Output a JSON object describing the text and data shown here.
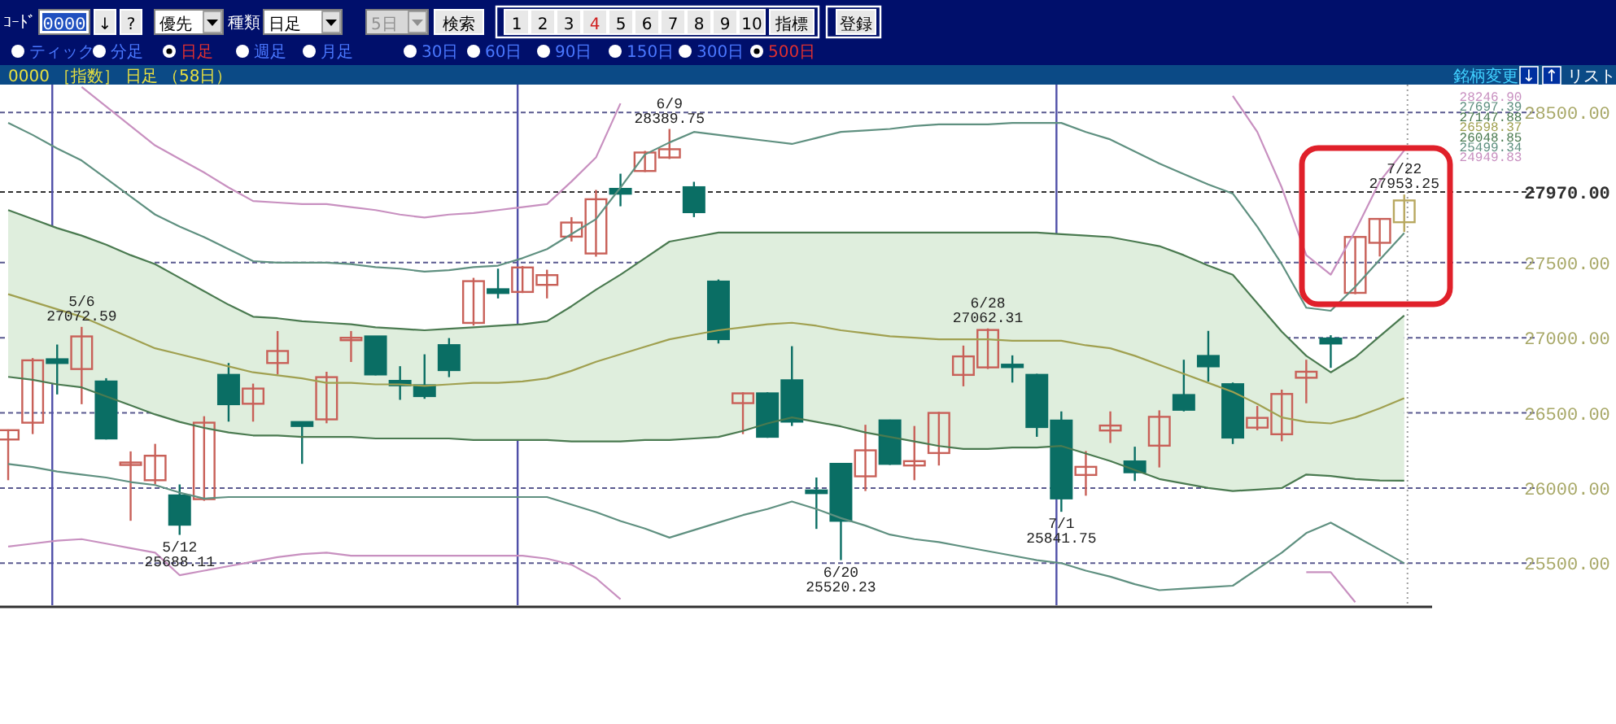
{
  "chart_data": {
    "type": "candlestick",
    "title": "0000 ［指数］ 日足 （58日）",
    "categories": [
      null,
      null,
      null,
      null,
      null,
      null,
      null,
      null,
      null,
      null,
      null,
      null,
      null,
      null,
      null,
      null,
      null,
      null,
      null,
      null,
      null,
      null,
      null,
      null,
      null,
      null,
      null,
      null,
      null,
      null,
      null,
      null,
      null,
      null,
      null,
      null,
      null,
      null,
      null,
      null,
      null,
      null,
      null,
      null,
      null,
      null,
      null,
      null,
      null,
      null,
      null,
      null,
      null,
      null,
      null,
      null,
      null,
      null
    ],
    "ohlc": [
      [
        26323,
        26390,
        26052,
        26385
      ],
      [
        26435,
        26865,
        26359,
        26850
      ],
      [
        26857,
        26955,
        26623,
        26832
      ],
      [
        26792,
        27072.59,
        26558,
        27009
      ],
      [
        26709,
        26731,
        26323,
        26330
      ],
      [
        26160,
        26244,
        25782,
        26170
      ],
      [
        26052,
        26294,
        26024,
        26215
      ],
      [
        25951,
        26024,
        25688.11,
        25756
      ],
      [
        25926,
        26478,
        25915,
        26435
      ],
      [
        26753,
        26832,
        26442,
        26558
      ],
      [
        26561,
        26695,
        26442,
        26662
      ],
      [
        26832,
        27045,
        26756,
        26912
      ],
      [
        26439,
        26442,
        26161,
        26413
      ],
      [
        26457,
        26774,
        26431,
        26738
      ],
      [
        26990,
        27045,
        26839,
        27000
      ],
      [
        27009,
        27012,
        26750,
        26756
      ],
      [
        26713,
        26811,
        26587,
        26684
      ],
      [
        26684,
        26890,
        26594,
        26612
      ],
      [
        26951,
        26998,
        26738,
        26785
      ],
      [
        27099,
        27399,
        27081,
        27377
      ],
      [
        27323,
        27460,
        27262,
        27298
      ],
      [
        27305,
        27478,
        27298,
        27468
      ],
      [
        27352,
        27453,
        27262,
        27417
      ],
      [
        27673,
        27803,
        27641,
        27767
      ],
      [
        27561,
        27984,
        27540,
        27922
      ],
      [
        27991,
        28092,
        27875,
        27959
      ],
      [
        28110,
        28244,
        28103,
        28233
      ],
      [
        28200,
        28389.75,
        28190,
        28255
      ],
      [
        28002,
        28038,
        27803,
        27836
      ],
      [
        27374,
        27388,
        26962,
        26991
      ],
      [
        26565,
        26637,
        26359,
        26630
      ],
      [
        26630,
        26637,
        26334,
        26341
      ],
      [
        26717,
        26944,
        26413,
        26442
      ],
      [
        25984,
        26070,
        25728,
        25966
      ],
      [
        26161,
        26164,
        25520.23,
        25782
      ],
      [
        26078,
        26421,
        25980,
        26251
      ],
      [
        26450,
        26455,
        26154,
        26161
      ],
      [
        26150,
        26413,
        26052,
        26179
      ],
      [
        26233,
        26507,
        26150,
        26500
      ],
      [
        26753,
        26948,
        26677,
        26876
      ],
      [
        26803,
        27062.31,
        26792,
        27052
      ],
      [
        26821,
        26883,
        26702,
        26810
      ],
      [
        26753,
        26760,
        26341,
        26406
      ],
      [
        26449,
        26510,
        25841.75,
        25931
      ],
      [
        26087,
        26246,
        25949,
        26141
      ],
      [
        26383,
        26510,
        26300,
        26416
      ],
      [
        26177,
        26275,
        26047,
        26105
      ],
      [
        26282,
        26517,
        26137,
        26474
      ],
      [
        26619,
        26854,
        26510,
        26521
      ],
      [
        26879,
        27046,
        26709,
        26810
      ],
      [
        26691,
        26702,
        26293,
        26336
      ],
      [
        26402,
        26546,
        26384,
        26467
      ],
      [
        26358,
        26655,
        26311,
        26626
      ],
      [
        26734,
        26854,
        26564,
        26774
      ],
      [
        26995,
        27017,
        26800,
        26962
      ],
      [
        27299,
        27675,
        27290,
        27671
      ],
      [
        27632,
        27795,
        27541,
        27791
      ],
      [
        27769,
        27953.25,
        27704,
        27914
      ]
    ],
    "colors": [
      "#c86058",
      "#c86058",
      "#0a6e64",
      "#c86058",
      "#0a6e64",
      "#c86058",
      "#c86058",
      "#0a6e64",
      "#c86058",
      "#0a6e64",
      "#c86058",
      "#c86058",
      "#0a6e64",
      "#c86058",
      "#c86058",
      "#0a6e64",
      "#0a6e64",
      "#0a6e64",
      "#0a6e64",
      "#c86058",
      "#0a6e64",
      "#c86058",
      "#c86058",
      "#c86058",
      "#c86058",
      "#0a6e64",
      "#c86058",
      "#c86058",
      "#0a6e64",
      "#0a6e64",
      "#c86058",
      "#0a6e64",
      "#0a6e64",
      "#0a6e64",
      "#0a6e64",
      "#c86058",
      "#0a6e64",
      "#c86058",
      "#c86058",
      "#c86058",
      "#c86058",
      "#0a6e64",
      "#0a6e64",
      "#0a6e64",
      "#c86058",
      "#c86058",
      "#0a6e64",
      "#c86058",
      "#0a6e64",
      "#0a6e64",
      "#0a6e64",
      "#c86058",
      "#c86058",
      "#c86058",
      "#0a6e64",
      "#c86058",
      "#c86058",
      "#b8a860"
    ],
    "ylim": [
      25220,
      28685
    ],
    "yticks": [
      {
        "value": 25500,
        "label": "25500.00"
      },
      {
        "value": 26000,
        "label": "26000.00"
      },
      {
        "value": 26500,
        "label": "26500.00"
      },
      {
        "value": 27000,
        "label": "27000.00"
      },
      {
        "value": 27500,
        "label": "27500.00"
      },
      {
        "value": 28500,
        "label": "28500.00"
      }
    ],
    "tick_labels": "y",
    "grid": true,
    "ref_lines": [
      {
        "axis": "y",
        "value": 27970,
        "label": "27970.00",
        "color": "#303030",
        "line_style": "dashed"
      }
    ],
    "series": [
      {
        "type": "line",
        "color": "#c890c0",
        "values": [
          null,
          null,
          null,
          28670,
          28540,
          28410,
          28280,
          28190,
          28100,
          28000,
          27910,
          27900,
          27890,
          27890,
          27870,
          27850,
          27820,
          27800,
          27820,
          27830,
          27850,
          27870,
          27890,
          28040,
          28200,
          28560,
          null,
          null,
          null,
          null,
          null,
          null,
          null,
          null,
          null,
          null,
          null,
          null,
          null,
          null,
          null,
          null,
          null,
          null,
          null,
          null,
          null,
          null,
          null,
          null,
          28610,
          28370,
          28000,
          27550,
          27420,
          27710,
          28040,
          28246.9
        ]
      },
      {
        "type": "line",
        "color": "#5f9080",
        "values": [
          28430,
          28350,
          28260,
          28180,
          28060,
          27940,
          27820,
          27740,
          27670,
          27590,
          27510,
          27500,
          27500,
          27500,
          27490,
          27470,
          27460,
          27440,
          27450,
          27470,
          27480,
          27530,
          27590,
          27690,
          27790,
          28000,
          28220,
          28300,
          28370,
          28350,
          28330,
          28310,
          28290,
          28330,
          28370,
          28380,
          28390,
          28410,
          28420,
          28420,
          28420,
          28430,
          28430,
          28430,
          28370,
          28320,
          28240,
          28160,
          28090,
          28020,
          27960,
          27740,
          27490,
          27200,
          27180,
          27340,
          27520,
          27697.39
        ]
      },
      {
        "type": "line",
        "color": "#4a7a50",
        "values": [
          27850,
          27790,
          27730,
          27680,
          27620,
          27550,
          27490,
          27400,
          27310,
          27220,
          27140,
          27130,
          27110,
          27100,
          27090,
          27070,
          27060,
          27050,
          27060,
          27070,
          27080,
          27090,
          27110,
          27210,
          27320,
          27420,
          27530,
          27640,
          27670,
          27700,
          27700,
          27700,
          27700,
          27700,
          27700,
          27700,
          27700,
          27700,
          27700,
          27700,
          27700,
          27700,
          27700,
          27690,
          27680,
          27670,
          27640,
          27610,
          27550,
          27480,
          27420,
          27230,
          27040,
          26880,
          26770,
          26870,
          27010,
          27147.88
        ]
      },
      {
        "type": "line",
        "color": "#a0a050",
        "values": [
          27290,
          27240,
          27190,
          27140,
          27070,
          27000,
          26930,
          26890,
          26850,
          26810,
          26770,
          26750,
          26730,
          26700,
          26700,
          26690,
          26690,
          26680,
          26690,
          26700,
          26700,
          26710,
          26730,
          26780,
          26840,
          26890,
          26940,
          26990,
          27020,
          27050,
          27070,
          27090,
          27100,
          27080,
          27050,
          27030,
          27010,
          27000,
          26990,
          26990,
          26990,
          26980,
          26980,
          26980,
          26950,
          26930,
          26880,
          26820,
          26760,
          26700,
          26640,
          26560,
          26470,
          26440,
          26430,
          26470,
          26530,
          26598.37
        ],
        "upper": [
          27850,
          27790,
          27730,
          27680,
          27620,
          27550,
          27490,
          27400,
          27310,
          27220,
          27140,
          27130,
          27110,
          27100,
          27090,
          27070,
          27060,
          27050,
          27060,
          27070,
          27080,
          27090,
          27110,
          27210,
          27320,
          27420,
          27530,
          27640,
          27670,
          27700,
          27700,
          27700,
          27700,
          27700,
          27700,
          27700,
          27700,
          27700,
          27700,
          27700,
          27700,
          27700,
          27700,
          27690,
          27680,
          27670,
          27640,
          27610,
          27550,
          27480,
          27420,
          27230,
          27040,
          26880,
          26770,
          26870,
          27010,
          27147.88
        ],
        "lower": [
          26740,
          26720,
          26690,
          26670,
          26610,
          26550,
          26490,
          26440,
          26400,
          26370,
          26350,
          26350,
          26340,
          26340,
          26340,
          26330,
          26330,
          26330,
          26330,
          26320,
          26320,
          26320,
          26320,
          26310,
          26310,
          26310,
          26320,
          26320,
          26330,
          26340,
          26380,
          26430,
          26470,
          26440,
          26410,
          26370,
          26340,
          26310,
          26280,
          26260,
          26260,
          26270,
          26270,
          26280,
          26230,
          26180,
          26120,
          26060,
          26030,
          26000,
          25980,
          25990,
          26000,
          26090,
          26080,
          26060,
          26050,
          26048.85
        ]
      },
      {
        "type": "line",
        "color": "#4a7a50",
        "values": [
          26740,
          26720,
          26690,
          26670,
          26610,
          26550,
          26490,
          26440,
          26400,
          26370,
          26350,
          26350,
          26340,
          26340,
          26340,
          26330,
          26330,
          26330,
          26330,
          26320,
          26320,
          26320,
          26320,
          26310,
          26310,
          26310,
          26320,
          26320,
          26330,
          26340,
          26380,
          26430,
          26470,
          26440,
          26410,
          26370,
          26340,
          26310,
          26280,
          26260,
          26260,
          26270,
          26270,
          26280,
          26230,
          26180,
          26120,
          26060,
          26030,
          26000,
          25980,
          25990,
          26000,
          26090,
          26080,
          26060,
          26050,
          26048.85
        ]
      },
      {
        "type": "line",
        "color": "#5f9080",
        "values": [
          26160,
          26140,
          26110,
          26090,
          26070,
          26040,
          26020,
          25970,
          25930,
          25940,
          25940,
          25940,
          25940,
          25940,
          25940,
          25940,
          25940,
          25940,
          25940,
          25940,
          25940,
          25940,
          25940,
          25890,
          25840,
          25780,
          25730,
          25670,
          25720,
          25770,
          25820,
          25860,
          25910,
          25860,
          25800,
          25750,
          25690,
          25660,
          25640,
          25610,
          25580,
          25550,
          25520,
          25500,
          25450,
          25410,
          25360,
          25320,
          25330,
          25340,
          25350,
          25460,
          25570,
          25700,
          25770,
          25680,
          25590,
          25499.34
        ]
      },
      {
        "type": "line",
        "color": "#c890c0",
        "values": [
          25610,
          25630,
          25650,
          25660,
          25630,
          25600,
          25570,
          25420,
          25450,
          25480,
          25510,
          25540,
          25560,
          25570,
          25550,
          25550,
          25550,
          25550,
          25550,
          25550,
          25550,
          25550,
          25530,
          25490,
          25400,
          25260,
          null,
          null,
          null,
          null,
          null,
          null,
          null,
          null,
          null,
          null,
          null,
          null,
          null,
          null,
          null,
          null,
          null,
          null,
          null,
          null,
          null,
          null,
          null,
          null,
          null,
          null,
          null,
          25440,
          25440,
          25240,
          null,
          null
        ]
      }
    ],
    "annotations": [
      {
        "text": "5/6 27072.59",
        "y": 27072.59
      },
      {
        "text": "5/12 25688.11",
        "y": 25688.11
      },
      {
        "text": "6/9 28389.75",
        "y": 28389.75
      },
      {
        "text": "6/20 25520.23",
        "y": 25520.23
      },
      {
        "text": "6/28 27062.31",
        "y": 27062.31
      },
      {
        "text": "7/1 25841.75",
        "y": 25841.75
      },
      {
        "text": "7/22 27953.25",
        "y": 27953.25
      },
      "28246.90",
      "27697.39",
      "27147.88",
      "26598.37",
      "26048.85",
      "25499.34",
      "24949.83",
      "ｺｰﾄﾞ",
      "0000",
      "↓",
      "?",
      "優先",
      "種類",
      "日足",
      "5日",
      "検索",
      "1",
      "2",
      "3",
      "4",
      "5",
      "6",
      "7",
      "8",
      "9",
      "10",
      "指標",
      "登録",
      "ティック",
      "分足",
      "日足",
      "週足",
      "月足",
      "30日",
      "60日",
      "90日",
      "150日",
      "300日",
      "500日",
      "銘柄変更",
      "↓",
      "↑",
      "リスト"
    ]
  }
}
